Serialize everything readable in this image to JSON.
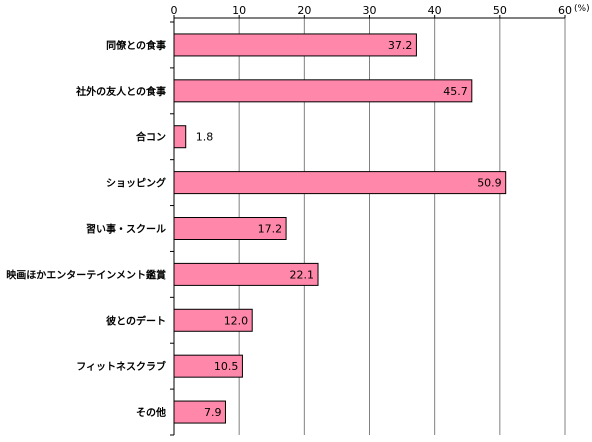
{
  "chart_data": {
    "type": "bar",
    "orientation": "horizontal",
    "categories": [
      "同僚との食事",
      "社外の友人との食事",
      "合コン",
      "ショッピング",
      "習い事・スクール",
      "映画ほかエンターテインメント鑑賞",
      "彼とのデート",
      "フィットネスクラブ",
      "その他"
    ],
    "values": [
      37.2,
      45.7,
      1.8,
      50.9,
      17.2,
      22.1,
      12.0,
      10.5,
      7.9
    ],
    "value_labels": [
      "37.2",
      "45.7",
      "1.8",
      "50.9",
      "17.2",
      "22.1",
      "12.0",
      "10.5",
      "7.9"
    ],
    "xlim": [
      0,
      60
    ],
    "ticks": [
      0,
      10,
      20,
      30,
      40,
      50,
      60
    ],
    "tick_labels": [
      "0",
      "10",
      "20",
      "30",
      "40",
      "50",
      "60"
    ],
    "unit_label": "(%)",
    "axis_position": "top",
    "grid": "vertical",
    "legend": "none",
    "colors": {
      "bar_fill": "#ff88aa",
      "bar_stroke": "#000000",
      "grid": "#808080",
      "axis": "#000000"
    }
  }
}
